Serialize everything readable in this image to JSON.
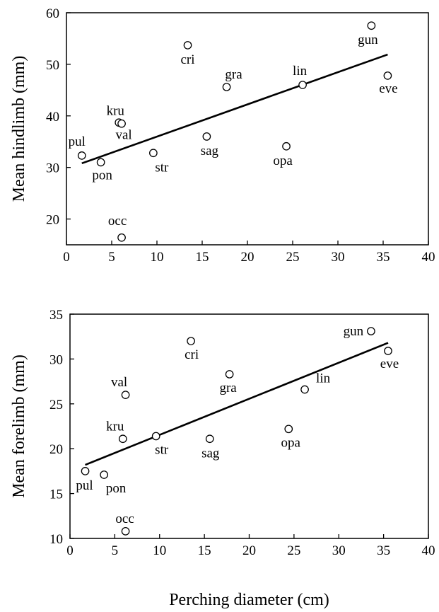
{
  "chart_data": [
    {
      "type": "scatter",
      "xlabel": "",
      "ylabel": "Mean hindlimb (mm)",
      "xlim": [
        0,
        40
      ],
      "ylim": [
        15,
        60
      ],
      "xticks": [
        0,
        5,
        10,
        15,
        20,
        25,
        30,
        35,
        40
      ],
      "yticks": [
        20,
        30,
        40,
        50,
        60
      ],
      "grid": false,
      "points": [
        {
          "label": "pul",
          "x": 1.7,
          "y": 32.3
        },
        {
          "label": "pon",
          "x": 3.8,
          "y": 31.0
        },
        {
          "label": "kru",
          "x": 5.8,
          "y": 38.7
        },
        {
          "label": "val",
          "x": 6.1,
          "y": 38.5
        },
        {
          "label": "occ",
          "x": 6.1,
          "y": 16.4
        },
        {
          "label": "str",
          "x": 9.6,
          "y": 32.8
        },
        {
          "label": "cri",
          "x": 13.4,
          "y": 53.7
        },
        {
          "label": "sag",
          "x": 15.5,
          "y": 36.0
        },
        {
          "label": "gra",
          "x": 17.7,
          "y": 45.6
        },
        {
          "label": "opa",
          "x": 24.3,
          "y": 34.1
        },
        {
          "label": "lin",
          "x": 26.1,
          "y": 46.0
        },
        {
          "label": "gun",
          "x": 33.7,
          "y": 57.5
        },
        {
          "label": "eve",
          "x": 35.5,
          "y": 47.8
        }
      ],
      "trendline": {
        "x": [
          1.7,
          35.5
        ],
        "y": [
          30.8,
          51.9
        ]
      }
    },
    {
      "type": "scatter",
      "xlabel": "Perching diameter (cm)",
      "ylabel": "Mean forelimb (mm)",
      "xlim": [
        0,
        40
      ],
      "ylim": [
        10,
        35
      ],
      "xticks": [
        0,
        5,
        10,
        15,
        20,
        25,
        30,
        35,
        40
      ],
      "yticks": [
        10,
        15,
        20,
        25,
        30,
        35
      ],
      "grid": false,
      "points": [
        {
          "label": "pul",
          "x": 1.7,
          "y": 17.5
        },
        {
          "label": "pon",
          "x": 3.8,
          "y": 17.1
        },
        {
          "label": "kru",
          "x": 5.9,
          "y": 21.1
        },
        {
          "label": "val",
          "x": 6.2,
          "y": 26.0
        },
        {
          "label": "occ",
          "x": 6.2,
          "y": 10.8
        },
        {
          "label": "str",
          "x": 9.6,
          "y": 21.4
        },
        {
          "label": "cri",
          "x": 13.5,
          "y": 32.0
        },
        {
          "label": "sag",
          "x": 15.6,
          "y": 21.1
        },
        {
          "label": "gra",
          "x": 17.8,
          "y": 28.3
        },
        {
          "label": "opa",
          "x": 24.4,
          "y": 22.2
        },
        {
          "label": "lin",
          "x": 26.2,
          "y": 26.6
        },
        {
          "label": "gun",
          "x": 33.6,
          "y": 33.1
        },
        {
          "label": "eve",
          "x": 35.5,
          "y": 30.9
        }
      ],
      "trendline": {
        "x": [
          1.7,
          35.5
        ],
        "y": [
          18.2,
          31.8
        ]
      }
    }
  ]
}
